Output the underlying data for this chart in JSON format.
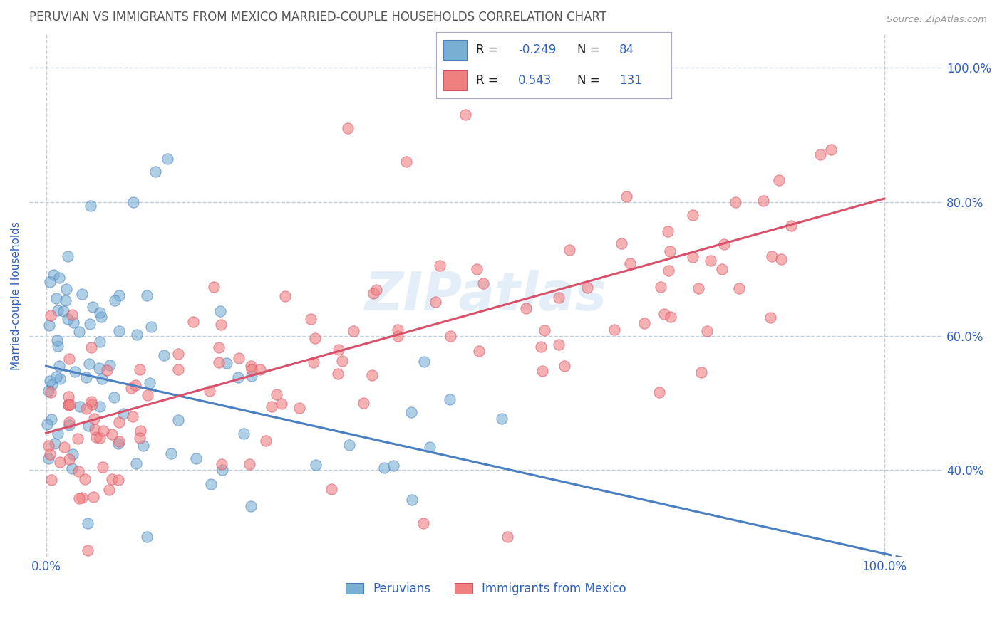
{
  "title": "PERUVIAN VS IMMIGRANTS FROM MEXICO MARRIED-COUPLE HOUSEHOLDS CORRELATION CHART",
  "source": "Source: ZipAtlas.com",
  "ylabel": "Married-couple Households",
  "legend_blue_r": "-0.249",
  "legend_blue_n": "84",
  "legend_pink_r": "0.543",
  "legend_pink_n": "131",
  "blue_color": "#7aafd4",
  "pink_color": "#f08080",
  "line_blue": "#4a7fc1",
  "line_pink": "#d9506a",
  "text_color": "#3060c0",
  "title_color": "#555555",
  "watermark": "ZIPatlas",
  "background_color": "#ffffff",
  "grid_color": "#c0cfe0",
  "blue_line_y_start": 0.555,
  "blue_line_y_end": 0.275,
  "pink_line_y_start": 0.455,
  "pink_line_y_end": 0.805,
  "ylim": [
    0.27,
    1.05
  ],
  "xlim": [
    -0.02,
    1.07
  ],
  "y_ticks": [
    0.4,
    0.6,
    0.8,
    1.0
  ],
  "y_tick_labels": [
    "40.0%",
    "60.0%",
    "80.0%",
    "100.0%"
  ]
}
